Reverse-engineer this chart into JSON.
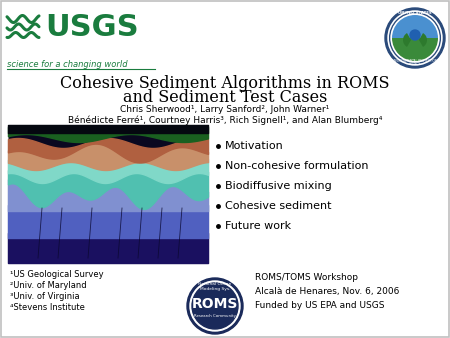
{
  "bg_color": "#ffffff",
  "border_color": "#c0c0c0",
  "title_line1": "Cohesive Sediment Algorithms in ROMS",
  "title_line2": "and Sediment Test Cases",
  "authors_line1": "Chris Sherwood¹, Larry Sanford², John Warner¹",
  "authors_line2": "Bénédicte Ferré¹, Courtney Harris³, Rich Signell¹, and Alan Blumberg⁴",
  "bullet_points": [
    "Motivation",
    "Non-cohesive formulation",
    "Biodiffusive mixing",
    "Cohesive sediment",
    "Future work"
  ],
  "affiliations": [
    "¹US Geological Survey",
    "²Univ. of Maryland",
    "³Univ. of Virginia",
    "⁴Stevens Institute"
  ],
  "workshop_text": "ROMS/TOMS Workshop\nAlcalà de Henares, Nov. 6, 2006\nFunded by US EPA and USGS",
  "usgs_green": "#1a7c3e",
  "title_fontsize": 11.5,
  "author_fontsize": 6.5,
  "bullet_fontsize": 8,
  "affil_fontsize": 6,
  "workshop_fontsize": 6.5,
  "img_colors": {
    "sky": "#1a2a10",
    "vegetation": "#2d5a1e",
    "land_hi": "#c9996a",
    "land_lo": "#b87040",
    "teal_hi": "#7ec8b8",
    "teal_lo": "#5ab0a0",
    "blue_mid": "#8090c0",
    "blue_deep": "#6070a8",
    "ocean_dark": "#3040a0"
  }
}
